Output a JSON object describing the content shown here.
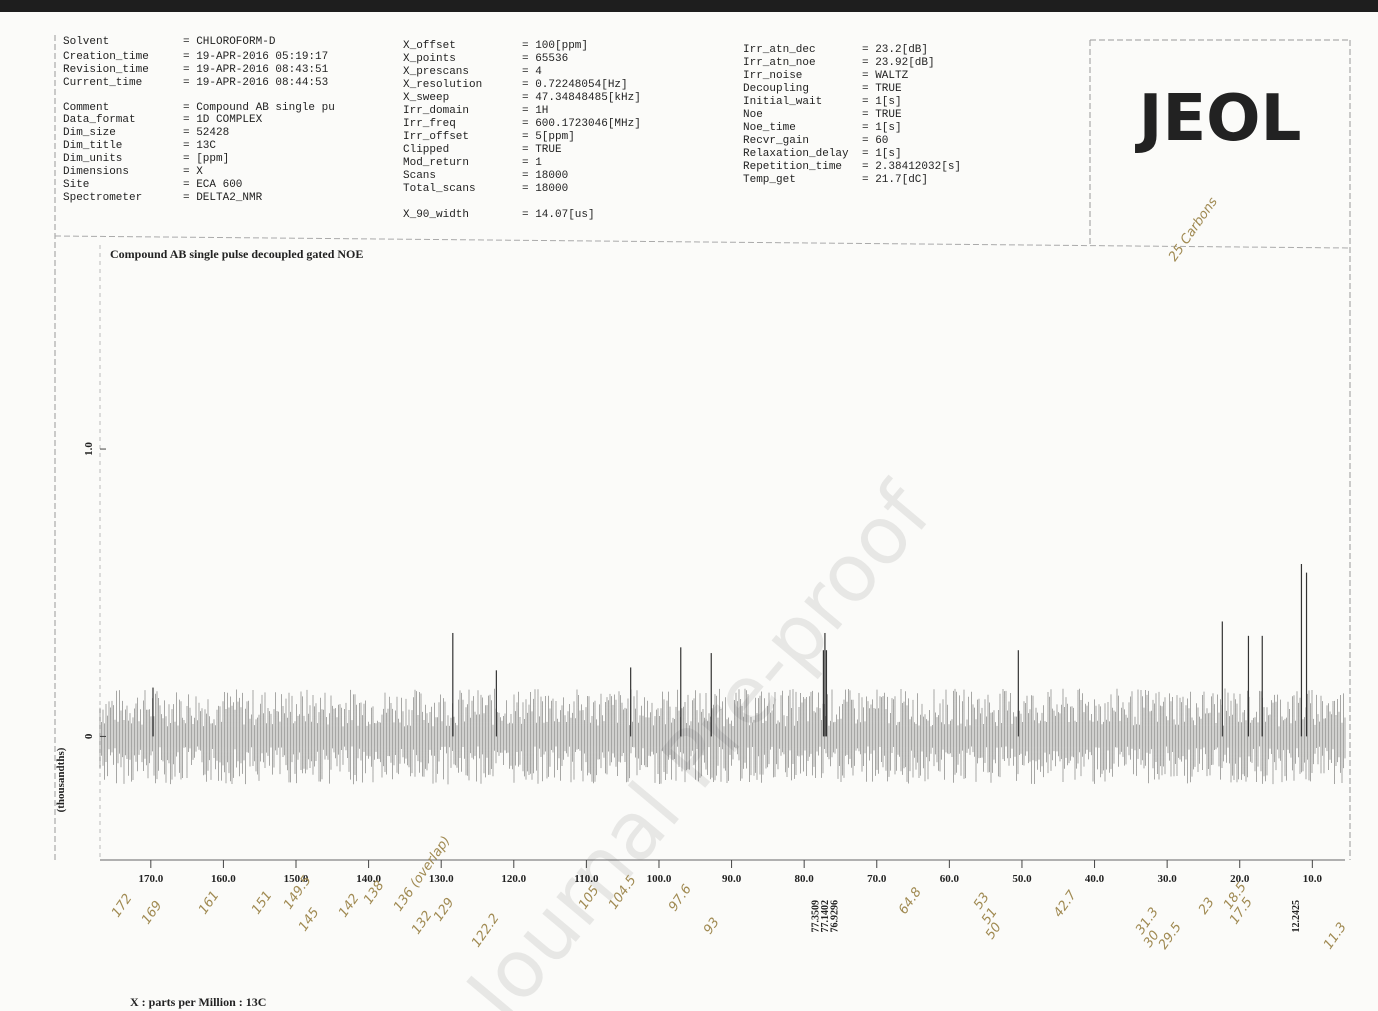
{
  "header": {
    "columns": [
      [
        {
          "key": "Solvent",
          "value": "= CHLOROFORM-D"
        },
        {
          "key": "Creation_time",
          "value": "= 19-APR-2016 05:19:17"
        },
        {
          "key": "Revision_time",
          "value": "= 19-APR-2016 08:43:51"
        },
        {
          "key": "Current_time",
          "value": "= 19-APR-2016 08:44:53"
        },
        {
          "key": "Comment",
          "value": "= Compound AB single pu"
        },
        {
          "key": "Data_format",
          "value": "= 1D COMPLEX"
        },
        {
          "key": "Dim_size",
          "value": "= 52428"
        },
        {
          "key": "Dim_title",
          "value": "= 13C"
        },
        {
          "key": "Dim_units",
          "value": "= [ppm]"
        },
        {
          "key": "Dimensions",
          "value": "= X"
        },
        {
          "key": "Site",
          "value": "= ECA 600"
        },
        {
          "key": "Spectrometer",
          "value": "= DELTA2_NMR"
        }
      ],
      [
        {
          "key": "X_offset",
          "value": "= 100[ppm]"
        },
        {
          "key": "X_points",
          "value": "= 65536"
        },
        {
          "key": "X_prescans",
          "value": "= 4"
        },
        {
          "key": "X_resolution",
          "value": "= 0.72248054[Hz]"
        },
        {
          "key": "X_sweep",
          "value": "= 47.34848485[kHz]"
        },
        {
          "key": "Irr_domain",
          "value": "= 1H"
        },
        {
          "key": "Irr_freq",
          "value": "= 600.1723046[MHz]"
        },
        {
          "key": "Irr_offset",
          "value": "= 5[ppm]"
        },
        {
          "key": "Clipped",
          "value": "= TRUE"
        },
        {
          "key": "Mod_return",
          "value": "= 1"
        },
        {
          "key": "Scans",
          "value": "= 18000"
        },
        {
          "key": "Total_scans",
          "value": "= 18000"
        },
        {
          "key": "X_90_width",
          "value": "= 14.07[us]"
        }
      ],
      [
        {
          "key": "Irr_atn_dec",
          "value": "= 23.2[dB]"
        },
        {
          "key": "Irr_atn_noe",
          "value": "= 23.92[dB]"
        },
        {
          "key": "Irr_noise",
          "value": "= WALTZ"
        },
        {
          "key": "Decoupling",
          "value": "= TRUE"
        },
        {
          "key": "Initial_wait",
          "value": "= 1[s]"
        },
        {
          "key": "Noe",
          "value": "= TRUE"
        },
        {
          "key": "Noe_time",
          "value": "= 1[s]"
        },
        {
          "key": "Recvr_gain",
          "value": "= 60"
        },
        {
          "key": "Relaxation_delay",
          "value": "= 1[s]"
        },
        {
          "key": "Repetition_time",
          "value": "= 2.38412032[s]"
        },
        {
          "key": "Temp_get",
          "value": "= 21.7[dC]"
        }
      ]
    ],
    "logo": "JEOL"
  },
  "chart_data": {
    "type": "spectrum",
    "title": "Compound AB single pulse decoupled gated NOE",
    "x_label": "X : parts per Million : 13C",
    "y_label": "(thousandths)",
    "color": "#333333",
    "xlim": [
      177,
      5.5
    ],
    "ylim": [
      -0.43,
      1.71
    ],
    "xticks": [
      {
        "value": 170,
        "label": "170.0"
      },
      {
        "value": 160,
        "label": "160.0"
      },
      {
        "value": 150,
        "label": "150.0"
      },
      {
        "value": 140,
        "label": "140.0"
      },
      {
        "value": 130,
        "label": "130.0"
      },
      {
        "value": 120,
        "label": "120.0"
      },
      {
        "value": 110,
        "label": "110.0"
      },
      {
        "value": 100,
        "label": "100.0"
      },
      {
        "value": 90,
        "label": "90.0"
      },
      {
        "value": 80,
        "label": "80.0"
      },
      {
        "value": 70,
        "label": "70.0"
      },
      {
        "value": 60,
        "label": "60.0"
      },
      {
        "value": 50,
        "label": "50.0"
      },
      {
        "value": 40,
        "label": "40.0"
      },
      {
        "value": 30,
        "label": "30.0"
      },
      {
        "value": 20,
        "label": "20.0"
      },
      {
        "value": 10,
        "label": "10.0"
      }
    ],
    "yticks": [
      0,
      {
        "value": 1,
        "label": "1.0"
      }
    ],
    "x": [
      169.7,
      128.4,
      122.4,
      103.9,
      97.0,
      92.8,
      77.35,
      77.14,
      76.93,
      50.5,
      22.4,
      18.8,
      16.9,
      11.5,
      10.8
    ],
    "values": [
      0.17,
      0.36,
      0.23,
      0.24,
      0.31,
      0.29,
      0.3,
      0.36,
      0.3,
      0.3,
      0.4,
      0.35,
      0.35,
      0.6,
      0.57
    ],
    "peak_labels": [
      77.3509,
      77.1402,
      76.9296,
      12.2425
    ],
    "notes": [
      "172",
      "169",
      "161",
      "151",
      "149.5",
      "145",
      "142",
      "138",
      "136 (overlap)",
      "132",
      "129",
      "122.2",
      "105",
      "104.5",
      "97.6",
      "93",
      "64.8",
      "53",
      "51",
      "50",
      "42.7",
      "31.3",
      "30",
      "29.5",
      "23",
      "18.5",
      "17.5",
      "11.3",
      "25 Carbons"
    ],
    "watermark": "Journal Pre-proof"
  }
}
